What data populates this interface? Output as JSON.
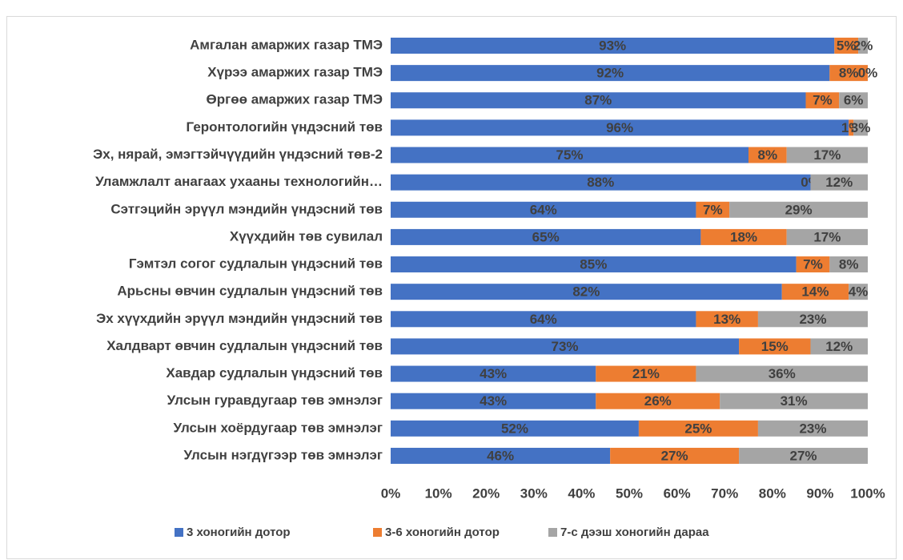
{
  "chart_data": {
    "type": "stacked_barh_percent",
    "categories": [
      "Амгалан амаржих газар ТМЭ",
      "Хүрээ амаржих  газар ТМЭ",
      "Өргөө амаржих газар ТМЭ",
      "Геронтологийн үндэсний төв",
      "Эх, нярай, эмэгтэйчүүдийн үндэсний төв-2",
      "Уламжлалт анагаах ухааны технологийн…",
      "Сэтгэцийн эрүүл мэндийн үндэсний төв",
      "Хүүхдийн төв сувилал",
      "Гэмтэл согог судлалын үндэсний төв",
      "Арьсны өвчин судлалын үндэсний төв",
      "Эх хүүхдийн эрүүл мэндийн үндэсний төв",
      "Халдварт өвчин судлалын үндэсний төв",
      "Хавдар судлалын үндэсний төв",
      "Улсын гуравдугаар төв эмнэлэг",
      "Улсын хоёрдугаар төв эмнэлэг",
      "Улсын нэгдүгээр төв эмнэлэг"
    ],
    "series": [
      {
        "name": "3 хоногийн дотор",
        "color": "#4472c4",
        "values": [
          93,
          92,
          87,
          96,
          75,
          88,
          64,
          65,
          85,
          82,
          64,
          73,
          43,
          43,
          52,
          46
        ],
        "value_labels": [
          "93%",
          "92%",
          "87%",
          "96%",
          "75%",
          "88%",
          "64%",
          "65%",
          "85%",
          "82%",
          "64%",
          "73%",
          "43%",
          "43%",
          "52%",
          "46%"
        ]
      },
      {
        "name": "3-6 хоногийн дотор",
        "color": "#ed7d31",
        "values": [
          5,
          8,
          7,
          1,
          8,
          0,
          7,
          18,
          7,
          14,
          13,
          15,
          21,
          26,
          25,
          27
        ],
        "value_labels": [
          "5%",
          "8%",
          "7%",
          "1%",
          "8%",
          "0%",
          "7%",
          "18%",
          "7%",
          "14%",
          "13%",
          "15%",
          "21%",
          "26%",
          "25%",
          "27%"
        ]
      },
      {
        "name": "7-с дээш хоногийн дараа",
        "color": "#a5a5a5",
        "values": [
          2,
          0,
          6,
          3,
          17,
          12,
          29,
          17,
          8,
          4,
          23,
          12,
          36,
          31,
          23,
          27
        ],
        "value_labels": [
          "2%",
          "0%",
          "6%",
          "3%",
          "17%",
          "12%",
          "29%",
          "17%",
          "8%",
          "4%",
          "23%",
          "12%",
          "36%",
          "31%",
          "23%",
          "27%"
        ]
      }
    ],
    "xlim": [
      0,
      100
    ],
    "xticks": [
      {
        "value": 0,
        "label": "0%"
      },
      {
        "value": 10,
        "label": "10%"
      },
      {
        "value": 20,
        "label": "20%"
      },
      {
        "value": 30,
        "label": "30%"
      },
      {
        "value": 40,
        "label": "40%"
      },
      {
        "value": 50,
        "label": "50%"
      },
      {
        "value": 60,
        "label": "60%"
      },
      {
        "value": 70,
        "label": "70%"
      },
      {
        "value": 80,
        "label": "80%"
      },
      {
        "value": 90,
        "label": "90%"
      },
      {
        "value": 100,
        "label": "100%"
      }
    ],
    "grid": false,
    "legend": "bottom"
  }
}
